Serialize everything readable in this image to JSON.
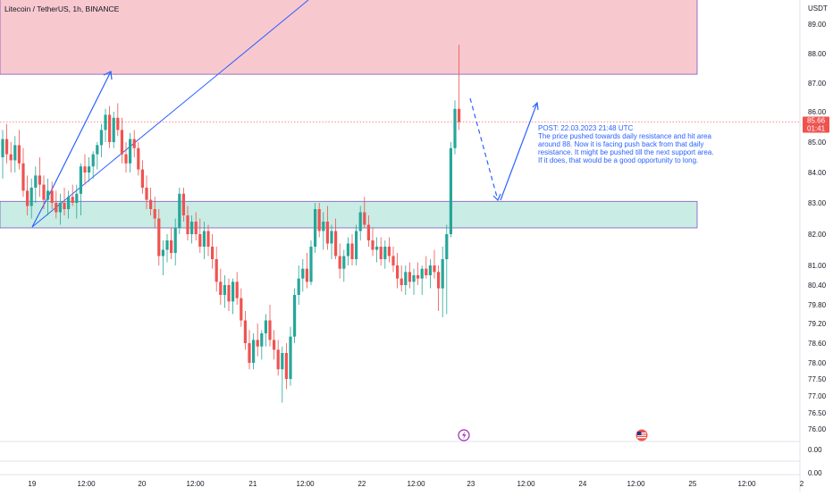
{
  "header": {
    "symbol": "Litecoin / TetherUS, 1h, BINANCE"
  },
  "price_axis": {
    "currency": "USDT",
    "ticks": [
      "89.00",
      "88.00",
      "87.00",
      "86.00",
      "85.00",
      "84.00",
      "83.00",
      "82.00",
      "81.00",
      "80.40",
      "79.80",
      "79.20",
      "78.60",
      "78.00",
      "77.50",
      "77.00",
      "76.50",
      "76.00"
    ]
  },
  "indicator_axis": {
    "ticks": [
      "0.00",
      "0.00"
    ]
  },
  "time_axis": {
    "ticks": [
      "19",
      "12:00",
      "20",
      "12:00",
      "21",
      "12:00",
      "22",
      "12:00",
      "23",
      "12:00",
      "24",
      "12:00",
      "25",
      "12:00",
      "2"
    ]
  },
  "last_price": {
    "value": "85.66",
    "countdown": "01:41"
  },
  "annotation": {
    "lines": [
      "POST: 22.03.2023 21:48 UTC",
      "The price pushed towards daily resistance and hit area",
      "around 88. Now it is facing push back from that daily",
      "resistance. It might be pushed till the next support area.",
      "If it does, that would be a good opportunity to long."
    ]
  },
  "colors": {
    "up": "#26a69a",
    "down": "#ef5350",
    "resistance_zone": "#f8c8cf",
    "support_zone": "#c9ece4",
    "zone_border": "#7e57c2",
    "drawing": "#2962ff",
    "last_price_line": "#ef5350",
    "marker_flash": "#9c27b0",
    "marker_flag": "#ef5350"
  },
  "icons": [
    "flash-icon",
    "flag-icon"
  ],
  "chart_data": {
    "type": "candlestick",
    "title": "Litecoin / TetherUS, 1h, BINANCE",
    "ylim": [
      76,
      89.5
    ],
    "y_unit": "USDT",
    "x_range": [
      "19",
      "2"
    ],
    "grid": false,
    "resistance_zone": [
      87.3,
      90
    ],
    "support_zone": [
      82.2,
      83.05
    ],
    "last_price": 85.66,
    "candles": [
      {
        "o": 84.5,
        "h": 85.4,
        "l": 83.8,
        "c": 85.1
      },
      {
        "o": 85.1,
        "h": 85.6,
        "l": 84.3,
        "c": 84.6
      },
      {
        "o": 84.6,
        "h": 85.0,
        "l": 84.0,
        "c": 84.4
      },
      {
        "o": 84.4,
        "h": 85.2,
        "l": 84.0,
        "c": 84.9
      },
      {
        "o": 84.9,
        "h": 85.4,
        "l": 84.1,
        "c": 84.3
      },
      {
        "o": 84.3,
        "h": 84.8,
        "l": 83.2,
        "c": 83.4
      },
      {
        "o": 83.4,
        "h": 83.9,
        "l": 82.6,
        "c": 82.9
      },
      {
        "o": 82.9,
        "h": 83.8,
        "l": 82.5,
        "c": 83.5
      },
      {
        "o": 83.5,
        "h": 84.2,
        "l": 83.0,
        "c": 83.9
      },
      {
        "o": 83.9,
        "h": 84.5,
        "l": 83.2,
        "c": 83.6
      },
      {
        "o": 83.6,
        "h": 83.9,
        "l": 82.8,
        "c": 83.1
      },
      {
        "o": 83.1,
        "h": 83.8,
        "l": 82.6,
        "c": 83.4
      },
      {
        "o": 83.4,
        "h": 83.7,
        "l": 82.8,
        "c": 83.0
      },
      {
        "o": 83.0,
        "h": 83.4,
        "l": 82.5,
        "c": 82.7
      },
      {
        "o": 82.7,
        "h": 83.3,
        "l": 82.3,
        "c": 83.0
      },
      {
        "o": 83.0,
        "h": 83.5,
        "l": 82.6,
        "c": 82.8
      },
      {
        "o": 82.8,
        "h": 83.4,
        "l": 82.5,
        "c": 83.2
      },
      {
        "o": 83.2,
        "h": 83.6,
        "l": 82.9,
        "c": 83.0
      },
      {
        "o": 83.0,
        "h": 83.6,
        "l": 82.5,
        "c": 83.3
      },
      {
        "o": 83.3,
        "h": 84.3,
        "l": 82.6,
        "c": 84.2
      },
      {
        "o": 84.2,
        "h": 84.6,
        "l": 83.6,
        "c": 84.0
      },
      {
        "o": 84.0,
        "h": 84.5,
        "l": 83.7,
        "c": 84.2
      },
      {
        "o": 84.2,
        "h": 84.7,
        "l": 83.8,
        "c": 84.6
      },
      {
        "o": 84.6,
        "h": 85.0,
        "l": 84.1,
        "c": 84.9
      },
      {
        "o": 84.9,
        "h": 85.6,
        "l": 84.5,
        "c": 85.4
      },
      {
        "o": 85.4,
        "h": 86.1,
        "l": 85.0,
        "c": 85.9
      },
      {
        "o": 85.9,
        "h": 86.2,
        "l": 84.8,
        "c": 85.0
      },
      {
        "o": 85.0,
        "h": 86.0,
        "l": 84.8,
        "c": 85.8
      },
      {
        "o": 85.8,
        "h": 86.3,
        "l": 85.2,
        "c": 85.4
      },
      {
        "o": 85.4,
        "h": 85.8,
        "l": 84.3,
        "c": 84.6
      },
      {
        "o": 84.6,
        "h": 85.0,
        "l": 84.0,
        "c": 84.3
      },
      {
        "o": 84.3,
        "h": 85.3,
        "l": 84.0,
        "c": 85.1
      },
      {
        "o": 85.1,
        "h": 85.4,
        "l": 84.5,
        "c": 84.8
      },
      {
        "o": 84.8,
        "h": 85.0,
        "l": 83.9,
        "c": 84.1
      },
      {
        "o": 84.1,
        "h": 84.4,
        "l": 83.3,
        "c": 83.5
      },
      {
        "o": 83.5,
        "h": 83.9,
        "l": 82.8,
        "c": 83.1
      },
      {
        "o": 83.1,
        "h": 83.5,
        "l": 82.6,
        "c": 82.8
      },
      {
        "o": 82.8,
        "h": 83.2,
        "l": 82.2,
        "c": 82.5
      },
      {
        "o": 82.5,
        "h": 82.8,
        "l": 81.0,
        "c": 81.3
      },
      {
        "o": 81.3,
        "h": 81.8,
        "l": 80.7,
        "c": 81.5
      },
      {
        "o": 81.5,
        "h": 82.0,
        "l": 81.1,
        "c": 81.8
      },
      {
        "o": 81.8,
        "h": 82.2,
        "l": 81.2,
        "c": 81.4
      },
      {
        "o": 81.4,
        "h": 82.5,
        "l": 81.0,
        "c": 82.2
      },
      {
        "o": 82.2,
        "h": 83.5,
        "l": 82.0,
        "c": 83.3
      },
      {
        "o": 83.3,
        "h": 83.5,
        "l": 82.4,
        "c": 82.6
      },
      {
        "o": 82.6,
        "h": 82.9,
        "l": 81.8,
        "c": 82.0
      },
      {
        "o": 82.0,
        "h": 82.6,
        "l": 81.7,
        "c": 82.4
      },
      {
        "o": 82.4,
        "h": 82.7,
        "l": 81.8,
        "c": 82.0
      },
      {
        "o": 82.0,
        "h": 82.5,
        "l": 81.4,
        "c": 81.6
      },
      {
        "o": 81.6,
        "h": 82.4,
        "l": 81.2,
        "c": 82.1
      },
      {
        "o": 82.1,
        "h": 82.3,
        "l": 81.3,
        "c": 81.6
      },
      {
        "o": 81.6,
        "h": 82.0,
        "l": 80.9,
        "c": 81.2
      },
      {
        "o": 81.2,
        "h": 81.6,
        "l": 80.2,
        "c": 80.5
      },
      {
        "o": 80.5,
        "h": 80.9,
        "l": 79.8,
        "c": 80.1
      },
      {
        "o": 80.1,
        "h": 80.7,
        "l": 79.7,
        "c": 80.4
      },
      {
        "o": 80.4,
        "h": 80.6,
        "l": 79.6,
        "c": 79.9
      },
      {
        "o": 79.9,
        "h": 80.6,
        "l": 79.5,
        "c": 80.5
      },
      {
        "o": 80.5,
        "h": 80.8,
        "l": 79.8,
        "c": 80.0
      },
      {
        "o": 80.0,
        "h": 80.3,
        "l": 79.1,
        "c": 79.3
      },
      {
        "o": 79.3,
        "h": 79.6,
        "l": 78.4,
        "c": 78.6
      },
      {
        "o": 78.6,
        "h": 79.0,
        "l": 77.8,
        "c": 78.0
      },
      {
        "o": 78.0,
        "h": 78.9,
        "l": 77.8,
        "c": 78.7
      },
      {
        "o": 78.7,
        "h": 79.2,
        "l": 78.2,
        "c": 78.5
      },
      {
        "o": 78.5,
        "h": 79.0,
        "l": 78.1,
        "c": 78.9
      },
      {
        "o": 78.9,
        "h": 79.5,
        "l": 78.5,
        "c": 79.3
      },
      {
        "o": 79.3,
        "h": 79.8,
        "l": 78.5,
        "c": 78.7
      },
      {
        "o": 78.7,
        "h": 79.0,
        "l": 78.1,
        "c": 78.4
      },
      {
        "o": 78.4,
        "h": 78.7,
        "l": 77.6,
        "c": 77.8
      },
      {
        "o": 77.8,
        "h": 78.5,
        "l": 76.8,
        "c": 78.3
      },
      {
        "o": 78.3,
        "h": 78.6,
        "l": 77.2,
        "c": 77.5
      },
      {
        "o": 77.5,
        "h": 79.1,
        "l": 77.3,
        "c": 78.8
      },
      {
        "o": 78.8,
        "h": 80.3,
        "l": 78.6,
        "c": 80.1
      },
      {
        "o": 80.1,
        "h": 81.0,
        "l": 79.8,
        "c": 80.6
      },
      {
        "o": 80.6,
        "h": 81.2,
        "l": 80.2,
        "c": 80.9
      },
      {
        "o": 80.9,
        "h": 81.4,
        "l": 80.3,
        "c": 80.5
      },
      {
        "o": 80.5,
        "h": 81.8,
        "l": 80.4,
        "c": 81.6
      },
      {
        "o": 81.6,
        "h": 83.0,
        "l": 81.4,
        "c": 82.8
      },
      {
        "o": 82.8,
        "h": 83.0,
        "l": 81.9,
        "c": 82.1
      },
      {
        "o": 82.1,
        "h": 82.7,
        "l": 81.5,
        "c": 82.4
      },
      {
        "o": 82.4,
        "h": 82.9,
        "l": 81.5,
        "c": 81.7
      },
      {
        "o": 81.7,
        "h": 82.3,
        "l": 81.2,
        "c": 82.1
      },
      {
        "o": 82.1,
        "h": 82.5,
        "l": 81.2,
        "c": 81.3
      },
      {
        "o": 81.3,
        "h": 81.7,
        "l": 80.6,
        "c": 80.9
      },
      {
        "o": 80.9,
        "h": 81.5,
        "l": 80.5,
        "c": 81.3
      },
      {
        "o": 81.3,
        "h": 81.9,
        "l": 81.0,
        "c": 81.7
      },
      {
        "o": 81.7,
        "h": 82.0,
        "l": 81.0,
        "c": 81.2
      },
      {
        "o": 81.2,
        "h": 82.3,
        "l": 81.0,
        "c": 82.1
      },
      {
        "o": 82.1,
        "h": 82.9,
        "l": 81.8,
        "c": 82.7
      },
      {
        "o": 82.7,
        "h": 83.2,
        "l": 82.2,
        "c": 82.3
      },
      {
        "o": 82.3,
        "h": 82.6,
        "l": 81.6,
        "c": 81.8
      },
      {
        "o": 81.8,
        "h": 82.2,
        "l": 81.3,
        "c": 81.5
      },
      {
        "o": 81.5,
        "h": 81.9,
        "l": 81.1,
        "c": 81.6
      },
      {
        "o": 81.6,
        "h": 81.9,
        "l": 81.0,
        "c": 81.2
      },
      {
        "o": 81.2,
        "h": 81.8,
        "l": 80.9,
        "c": 81.6
      },
      {
        "o": 81.6,
        "h": 81.9,
        "l": 81.1,
        "c": 81.3
      },
      {
        "o": 81.3,
        "h": 81.6,
        "l": 80.8,
        "c": 81.0
      },
      {
        "o": 81.0,
        "h": 81.4,
        "l": 80.3,
        "c": 80.6
      },
      {
        "o": 80.6,
        "h": 81.0,
        "l": 80.2,
        "c": 80.4
      },
      {
        "o": 80.4,
        "h": 81.0,
        "l": 80.1,
        "c": 80.8
      },
      {
        "o": 80.8,
        "h": 81.1,
        "l": 80.3,
        "c": 80.5
      },
      {
        "o": 80.5,
        "h": 80.9,
        "l": 80.1,
        "c": 80.7
      },
      {
        "o": 80.7,
        "h": 81.1,
        "l": 80.4,
        "c": 80.6
      },
      {
        "o": 80.6,
        "h": 81.0,
        "l": 80.1,
        "c": 80.9
      },
      {
        "o": 80.9,
        "h": 81.3,
        "l": 80.6,
        "c": 80.7
      },
      {
        "o": 80.7,
        "h": 81.2,
        "l": 80.3,
        "c": 81.0
      },
      {
        "o": 81.0,
        "h": 81.5,
        "l": 80.6,
        "c": 80.8
      },
      {
        "o": 80.8,
        "h": 81.0,
        "l": 79.6,
        "c": 80.3
      },
      {
        "o": 80.3,
        "h": 81.6,
        "l": 79.4,
        "c": 81.2
      },
      {
        "o": 81.2,
        "h": 82.3,
        "l": 79.5,
        "c": 82.0
      },
      {
        "o": 82.0,
        "h": 85.0,
        "l": 81.9,
        "c": 84.8
      },
      {
        "o": 84.8,
        "h": 86.4,
        "l": 84.6,
        "c": 86.1
      },
      {
        "o": 86.1,
        "h": 88.3,
        "l": 85.4,
        "c": 85.66
      }
    ]
  }
}
